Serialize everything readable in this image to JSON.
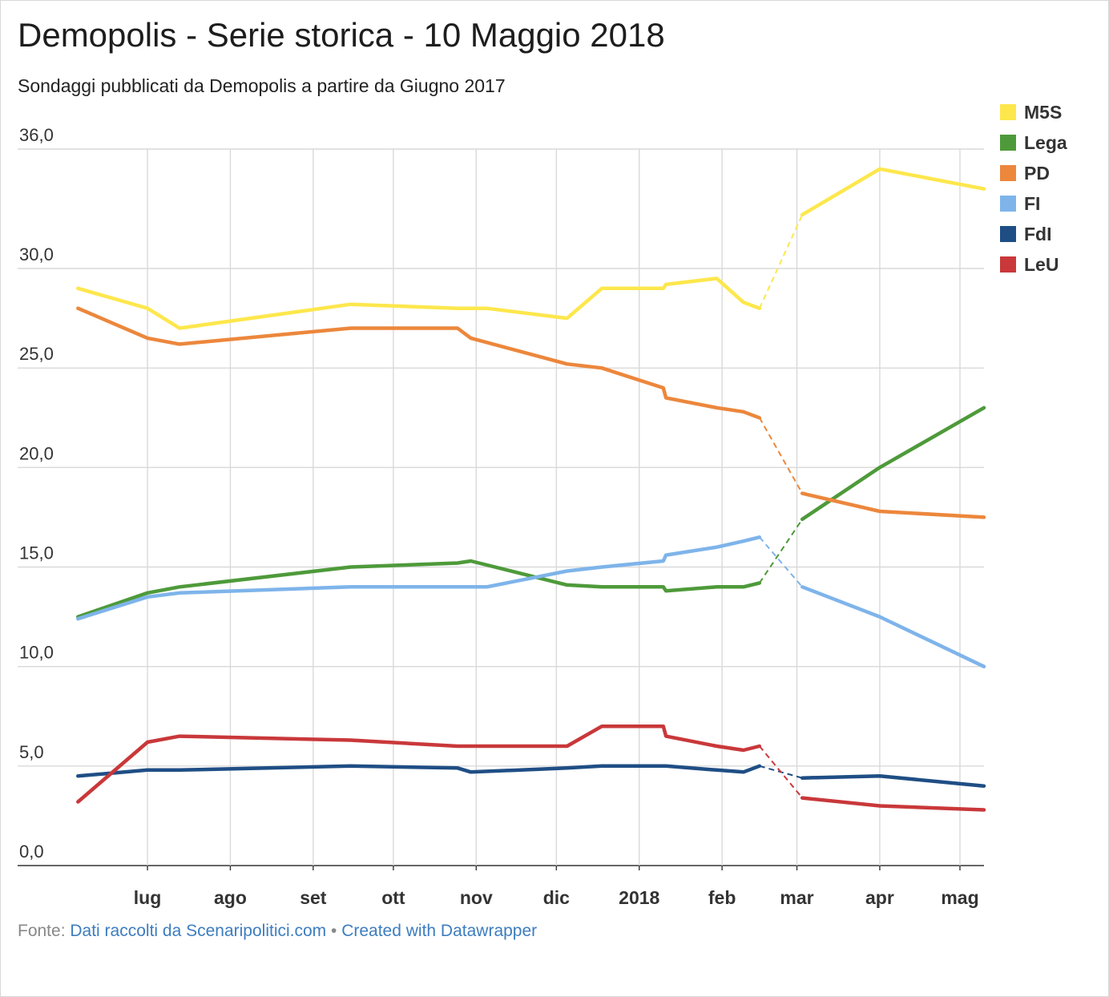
{
  "title": "Demopolis - Serie storica - 10 Maggio 2018",
  "subtitle": "Sondaggi pubblicati da Demopolis a partire da Giugno 2017",
  "footer": {
    "prefix": "Fonte: ",
    "source": "Dati raccolti da Scenaripolitici.com",
    "separator": " • ",
    "credit": "Created with Datawrapper"
  },
  "chart_data": {
    "type": "line",
    "y_ticks": [
      "0,0",
      "5,0",
      "10,0",
      "15,0",
      "20,0",
      "25,0",
      "30,0",
      "36,0"
    ],
    "ylim": [
      0,
      36
    ],
    "x_ticks": [
      {
        "label": "lug",
        "date": "2017-07-01"
      },
      {
        "label": "ago",
        "date": "2017-08-01"
      },
      {
        "label": "set",
        "date": "2017-09-01"
      },
      {
        "label": "ott",
        "date": "2017-10-01"
      },
      {
        "label": "nov",
        "date": "2017-11-01"
      },
      {
        "label": "dic",
        "date": "2017-12-01"
      },
      {
        "label": "2018",
        "date": "2018-01-01"
      },
      {
        "label": "feb",
        "date": "2018-02-01"
      },
      {
        "label": "mar",
        "date": "2018-03-01"
      },
      {
        "label": "apr",
        "date": "2018-04-01"
      },
      {
        "label": "mag",
        "date": "2018-05-01"
      }
    ],
    "grid": true,
    "legend_position": "top-right",
    "dashed_gap": [
      "2018-02-15",
      "2018-03-01"
    ],
    "series": [
      {
        "name": "M5S",
        "color": "#fde74c",
        "points": [
          [
            "2017-06-05",
            29.0
          ],
          [
            "2017-07-01",
            28.0
          ],
          [
            "2017-07-13",
            27.0
          ],
          [
            "2017-09-15",
            28.2
          ],
          [
            "2017-10-25",
            28.0
          ],
          [
            "2017-11-05",
            28.0
          ],
          [
            "2017-12-05",
            27.5
          ],
          [
            "2017-12-18",
            29.0
          ],
          [
            "2018-01-10",
            29.0
          ],
          [
            "2018-01-11",
            29.2
          ],
          [
            "2018-01-30",
            29.5
          ],
          [
            "2018-02-09",
            28.3
          ],
          [
            "2018-02-15",
            28.0
          ],
          [
            "2018-03-03",
            32.7
          ],
          [
            "2018-04-01",
            35.0
          ],
          [
            "2018-05-10",
            34.0
          ]
        ]
      },
      {
        "name": "Lega",
        "color": "#4e9a3a",
        "points": [
          [
            "2017-06-05",
            12.5
          ],
          [
            "2017-07-01",
            13.7
          ],
          [
            "2017-07-13",
            14.0
          ],
          [
            "2017-09-15",
            15.0
          ],
          [
            "2017-10-25",
            15.2
          ],
          [
            "2017-10-30",
            15.3
          ],
          [
            "2017-12-05",
            14.1
          ],
          [
            "2017-12-18",
            14.0
          ],
          [
            "2018-01-10",
            14.0
          ],
          [
            "2018-01-11",
            13.8
          ],
          [
            "2018-01-30",
            14.0
          ],
          [
            "2018-02-09",
            14.0
          ],
          [
            "2018-02-15",
            14.2
          ],
          [
            "2018-03-03",
            17.4
          ],
          [
            "2018-04-01",
            20.0
          ],
          [
            "2018-05-10",
            23.0
          ]
        ]
      },
      {
        "name": "PD",
        "color": "#ec873c",
        "points": [
          [
            "2017-06-05",
            28.0
          ],
          [
            "2017-07-01",
            26.5
          ],
          [
            "2017-07-13",
            26.2
          ],
          [
            "2017-09-15",
            27.0
          ],
          [
            "2017-10-25",
            27.0
          ],
          [
            "2017-10-30",
            26.5
          ],
          [
            "2017-12-05",
            25.2
          ],
          [
            "2017-12-18",
            25.0
          ],
          [
            "2018-01-10",
            24.0
          ],
          [
            "2018-01-11",
            23.5
          ],
          [
            "2018-01-30",
            23.0
          ],
          [
            "2018-02-09",
            22.8
          ],
          [
            "2018-02-15",
            22.5
          ],
          [
            "2018-03-03",
            18.7
          ],
          [
            "2018-04-01",
            17.8
          ],
          [
            "2018-05-10",
            17.5
          ]
        ]
      },
      {
        "name": "FI",
        "color": "#7eb4ea",
        "points": [
          [
            "2017-06-05",
            12.4
          ],
          [
            "2017-07-01",
            13.5
          ],
          [
            "2017-07-13",
            13.7
          ],
          [
            "2017-09-15",
            14.0
          ],
          [
            "2017-10-25",
            14.0
          ],
          [
            "2017-11-05",
            14.0
          ],
          [
            "2017-12-05",
            14.8
          ],
          [
            "2017-12-18",
            15.0
          ],
          [
            "2018-01-10",
            15.3
          ],
          [
            "2018-01-11",
            15.6
          ],
          [
            "2018-01-30",
            16.0
          ],
          [
            "2018-02-09",
            16.3
          ],
          [
            "2018-02-15",
            16.5
          ],
          [
            "2018-03-03",
            14.0
          ],
          [
            "2018-04-01",
            12.5
          ],
          [
            "2018-05-10",
            10.0
          ]
        ]
      },
      {
        "name": "FdI",
        "color": "#1f4e85",
        "points": [
          [
            "2017-06-05",
            4.5
          ],
          [
            "2017-07-01",
            4.8
          ],
          [
            "2017-07-13",
            4.8
          ],
          [
            "2017-09-15",
            5.0
          ],
          [
            "2017-10-25",
            4.9
          ],
          [
            "2017-10-30",
            4.7
          ],
          [
            "2017-12-05",
            4.9
          ],
          [
            "2017-12-18",
            5.0
          ],
          [
            "2018-01-10",
            5.0
          ],
          [
            "2018-01-11",
            5.0
          ],
          [
            "2018-01-30",
            4.8
          ],
          [
            "2018-02-09",
            4.7
          ],
          [
            "2018-02-15",
            5.0
          ],
          [
            "2018-03-03",
            4.4
          ],
          [
            "2018-04-01",
            4.5
          ],
          [
            "2018-05-10",
            4.0
          ]
        ]
      },
      {
        "name": "LeU",
        "color": "#c9383a",
        "points": [
          [
            "2017-06-05",
            3.2
          ],
          [
            "2017-07-01",
            6.2
          ],
          [
            "2017-07-13",
            6.5
          ],
          [
            "2017-09-15",
            6.3
          ],
          [
            "2017-10-25",
            6.0
          ],
          [
            "2017-11-05",
            6.0
          ],
          [
            "2017-12-05",
            6.0
          ],
          [
            "2017-12-18",
            7.0
          ],
          [
            "2018-01-10",
            7.0
          ],
          [
            "2018-01-11",
            6.5
          ],
          [
            "2018-01-30",
            6.0
          ],
          [
            "2018-02-09",
            5.8
          ],
          [
            "2018-02-15",
            6.0
          ],
          [
            "2018-03-03",
            3.4
          ],
          [
            "2018-04-01",
            3.0
          ],
          [
            "2018-05-10",
            2.8
          ]
        ]
      }
    ]
  }
}
